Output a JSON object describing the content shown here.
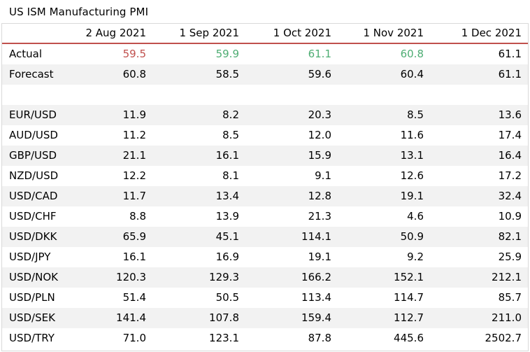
{
  "title": "US ISM Manufacturing PMI",
  "colors": {
    "up": "#4ead73",
    "down": "#c0504d",
    "neutral": "#000000",
    "rule": "#c0504d"
  },
  "chart_data": {
    "type": "table",
    "title": "US ISM Manufacturing PMI",
    "columns": [
      "2 Aug 2021",
      "1 Sep 2021",
      "1 Oct 2021",
      "1 Nov 2021",
      "1 Dec 2021"
    ],
    "rows": [
      {
        "label": "Actual",
        "values": [
          "59.5",
          "59.9",
          "61.1",
          "60.8",
          "61.1"
        ],
        "tones": [
          "down",
          "up",
          "up",
          "up",
          "neutral"
        ]
      },
      {
        "label": "Forecast",
        "values": [
          "60.8",
          "58.5",
          "59.6",
          "60.4",
          "61.1"
        ]
      },
      {
        "label": "",
        "values": [
          "",
          "",
          "",
          "",
          ""
        ]
      },
      {
        "label": "EUR/USD",
        "values": [
          "11.9",
          "8.2",
          "20.3",
          "8.5",
          "13.6"
        ]
      },
      {
        "label": "AUD/USD",
        "values": [
          "11.2",
          "8.5",
          "12.0",
          "11.6",
          "17.4"
        ]
      },
      {
        "label": "GBP/USD",
        "values": [
          "21.1",
          "16.1",
          "15.9",
          "13.1",
          "16.4"
        ]
      },
      {
        "label": "NZD/USD",
        "values": [
          "12.2",
          "8.1",
          "9.1",
          "12.6",
          "17.2"
        ]
      },
      {
        "label": "USD/CAD",
        "values": [
          "11.7",
          "13.4",
          "12.8",
          "19.1",
          "32.4"
        ]
      },
      {
        "label": "USD/CHF",
        "values": [
          "8.8",
          "13.9",
          "21.3",
          "4.6",
          "10.9"
        ]
      },
      {
        "label": "USD/DKK",
        "values": [
          "65.9",
          "45.1",
          "114.1",
          "50.9",
          "82.1"
        ]
      },
      {
        "label": "USD/JPY",
        "values": [
          "16.1",
          "16.9",
          "19.1",
          "9.2",
          "25.9"
        ]
      },
      {
        "label": "USD/NOK",
        "values": [
          "120.3",
          "129.3",
          "166.2",
          "152.1",
          "212.1"
        ]
      },
      {
        "label": "USD/PLN",
        "values": [
          "51.4",
          "50.5",
          "113.4",
          "114.7",
          "85.7"
        ]
      },
      {
        "label": "USD/SEK",
        "values": [
          "141.4",
          "107.8",
          "159.4",
          "112.7",
          "211.0"
        ]
      },
      {
        "label": "USD/TRY",
        "values": [
          "71.0",
          "123.1",
          "87.8",
          "445.6",
          "2502.7"
        ]
      }
    ]
  }
}
